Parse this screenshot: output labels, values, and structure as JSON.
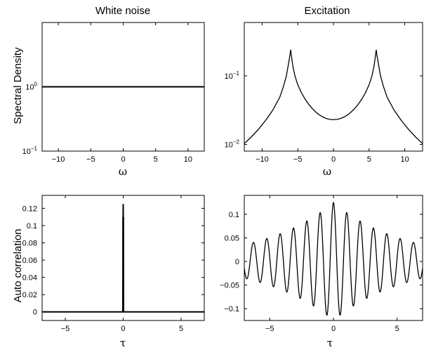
{
  "chart_data": [
    {
      "type": "line",
      "title": "White noise",
      "xlabel": "ω",
      "ylabel": "Spectral Density",
      "yscale": "log",
      "xlim": [
        -12.5,
        12.5
      ],
      "ylim": [
        0.1,
        10
      ],
      "x_ticks": [
        -10,
        -5,
        0,
        5,
        10
      ],
      "x_tick_labels": [
        "−10",
        "−5",
        "0",
        "5",
        "10"
      ],
      "y_ticks": [
        0.1,
        1
      ],
      "y_tick_labels": [
        {
          "base": "10",
          "exp": "−1"
        },
        {
          "base": "10",
          "exp": "0"
        }
      ],
      "series": [
        {
          "x": [
            -12.5,
            12.5
          ],
          "y": [
            1,
            1
          ]
        }
      ]
    },
    {
      "type": "line",
      "title": "Excitation",
      "xlabel": "ω",
      "ylabel": "",
      "yscale": "log",
      "xlim": [
        -12.5,
        12.5
      ],
      "ylim": [
        0.008,
        0.6
      ],
      "x_ticks": [
        -10,
        -5,
        0,
        5,
        10
      ],
      "x_tick_labels": [
        "−10",
        "−5",
        "0",
        "5",
        "10"
      ],
      "y_ticks": [
        0.01,
        0.1
      ],
      "y_tick_labels": [
        {
          "base": "10",
          "exp": "−2"
        },
        {
          "base": "10",
          "exp": "−1"
        }
      ],
      "series": [
        {
          "x": [
            -12.5,
            -11.5,
            -10.5,
            -9.5,
            -8.5,
            -7.5,
            -7,
            -6.6,
            -6.3,
            -6.1,
            -6.0,
            -5.9,
            -5.7,
            -5.4,
            -5,
            -4.5,
            -4,
            -3.5,
            -3,
            -2.5,
            -2,
            -1.5,
            -1,
            -0.5,
            0,
            0.5,
            1,
            1.5,
            2,
            2.5,
            3,
            3.5,
            4,
            4.5,
            5,
            5.4,
            5.7,
            5.9,
            6.0,
            6.1,
            6.3,
            6.6,
            7,
            7.5,
            8.5,
            9.5,
            10.5,
            11.5,
            12.5
          ],
          "y": [
            0.0103,
            0.0129,
            0.0167,
            0.0225,
            0.0317,
            0.0495,
            0.0706,
            0.1,
            0.15,
            0.2,
            0.24,
            0.2,
            0.14,
            0.1,
            0.0743,
            0.0571,
            0.0462,
            0.0389,
            0.0336,
            0.0298,
            0.0271,
            0.0252,
            0.0239,
            0.0232,
            0.023,
            0.0232,
            0.0239,
            0.0252,
            0.0271,
            0.0298,
            0.0336,
            0.0389,
            0.0462,
            0.0571,
            0.0743,
            0.1,
            0.14,
            0.2,
            0.24,
            0.2,
            0.15,
            0.1,
            0.0706,
            0.0495,
            0.0317,
            0.0225,
            0.0167,
            0.0129,
            0.0103
          ]
        }
      ]
    },
    {
      "type": "line",
      "title": "",
      "xlabel": "τ",
      "ylabel": "Auto correlation",
      "yscale": "linear",
      "xlim": [
        -7,
        7
      ],
      "ylim": [
        -0.01,
        0.135
      ],
      "x_ticks": [
        -5,
        0,
        5
      ],
      "x_tick_labels": [
        "−5",
        "0",
        "5"
      ],
      "y_ticks": [
        0,
        0.02,
        0.04,
        0.06,
        0.08,
        0.1,
        0.12
      ],
      "y_tick_labels": [
        "0",
        "0.02",
        "0.04",
        "0.06",
        "0.08",
        "0.1",
        "0.12"
      ],
      "series": [
        {
          "x": [
            -7,
            -0.03,
            -0.02,
            -0.01,
            0,
            0.01,
            0.02,
            0.03,
            7
          ],
          "y": [
            0,
            0,
            0.11,
            0.1,
            0.125,
            0.1,
            0.11,
            0,
            0
          ]
        }
      ]
    },
    {
      "type": "line",
      "title": "",
      "xlabel": "τ",
      "ylabel": "",
      "yscale": "linear",
      "xlim": [
        -7,
        7
      ],
      "ylim": [
        -0.125,
        0.14
      ],
      "x_ticks": [
        -5,
        0,
        5
      ],
      "x_tick_labels": [
        "−5",
        "0",
        "5"
      ],
      "y_ticks": [
        -0.1,
        -0.05,
        0,
        0.05,
        0.1
      ],
      "y_tick_labels": [
        "−0.1",
        "−0.05",
        "0",
        "0.05",
        "0.1"
      ],
      "series": [
        {
          "model": "damped_cosine",
          "amplitude": 0.125,
          "angular_frequency": 6.0,
          "decay_rate": 0.18,
          "x_range": [
            -7,
            7
          ]
        }
      ]
    }
  ]
}
